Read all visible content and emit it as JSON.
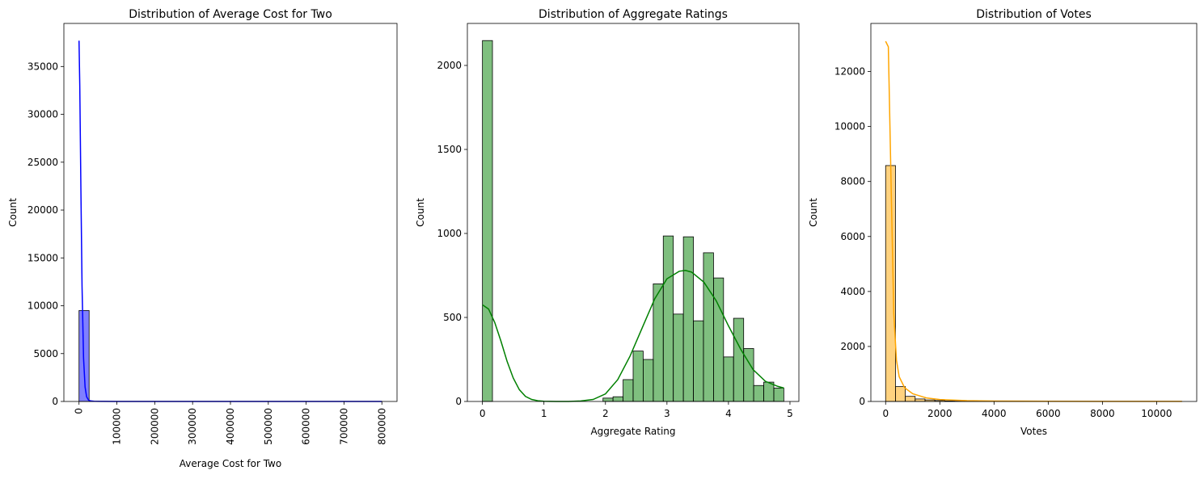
{
  "chart_data": [
    {
      "type": "bar",
      "title": "Distribution of Average Cost for Two",
      "xlabel": "Average Cost for Two",
      "ylabel": "Count",
      "xlim": [
        -40000,
        840000
      ],
      "ylim": [
        0,
        39500
      ],
      "xticks": [
        0,
        100000,
        200000,
        300000,
        400000,
        500000,
        600000,
        700000,
        800000
      ],
      "xtick_labels": [
        "0",
        "100000",
        "200000",
        "300000",
        "400000",
        "500000",
        "600000",
        "700000",
        "800000"
      ],
      "xtick_rotation": 90,
      "yticks": [
        0,
        5000,
        10000,
        15000,
        20000,
        25000,
        30000,
        35000
      ],
      "ytick_labels": [
        "0",
        "5000",
        "10000",
        "15000",
        "20000",
        "25000",
        "30000",
        "35000"
      ],
      "bar_color": "#0000ff",
      "line_color": "#0000ff",
      "bin_edges": [
        0,
        26667,
        53333,
        80000,
        106667,
        133333,
        160000,
        186667,
        213333,
        240000,
        266667,
        293333,
        320000,
        346667,
        373333,
        400000,
        426667,
        453333,
        480000,
        506667,
        533333,
        560000,
        586667,
        613333,
        640000,
        666667,
        693333,
        720000,
        746667,
        773333,
        800000
      ],
      "counts": [
        9500,
        20,
        10,
        8,
        5,
        4,
        3,
        3,
        2,
        2,
        2,
        2,
        1,
        1,
        1,
        1,
        1,
        1,
        1,
        1,
        1,
        1,
        1,
        1,
        1,
        1,
        1,
        1,
        1,
        2
      ],
      "kde": {
        "x": [
          0,
          2000,
          5000,
          8000,
          12000,
          16000,
          20000,
          25000,
          30000,
          40000,
          60000,
          100000,
          200000,
          400000,
          600000,
          800000
        ],
        "y": [
          37700,
          33000,
          22000,
          12000,
          4500,
          1500,
          500,
          150,
          60,
          20,
          10,
          5,
          3,
          2,
          2,
          2
        ]
      }
    },
    {
      "type": "bar",
      "title": "Distribution of Aggregate Ratings",
      "xlabel": "Aggregate Rating",
      "ylabel": "Count",
      "xlim": [
        -0.245,
        5.145
      ],
      "ylim": [
        0,
        2250
      ],
      "xticks": [
        0,
        1,
        2,
        3,
        4,
        5
      ],
      "xtick_labels": [
        "0",
        "1",
        "2",
        "3",
        "4",
        "5"
      ],
      "yticks": [
        0,
        500,
        1000,
        1500,
        2000
      ],
      "ytick_labels": [
        "0",
        "500",
        "1000",
        "1500",
        "2000"
      ],
      "bar_color": "#008000",
      "line_color": "#008000",
      "bin_edges": [
        0,
        0.163,
        0.327,
        0.49,
        0.653,
        0.817,
        0.98,
        1.143,
        1.307,
        1.47,
        1.633,
        1.797,
        1.96,
        2.123,
        2.287,
        2.45,
        2.613,
        2.777,
        2.94,
        3.103,
        3.267,
        3.43,
        3.593,
        3.757,
        3.92,
        4.083,
        4.247,
        4.41,
        4.573,
        4.737,
        4.9
      ],
      "counts": [
        2148,
        0,
        0,
        0,
        0,
        0,
        0,
        0,
        0,
        0,
        0,
        0,
        20,
        28,
        130,
        300,
        250,
        700,
        985,
        520,
        980,
        480,
        885,
        735,
        265,
        495,
        315,
        95,
        115,
        80
      ],
      "kde": {
        "x": [
          0,
          0.1,
          0.2,
          0.3,
          0.4,
          0.5,
          0.6,
          0.7,
          0.8,
          0.9,
          1.0,
          1.2,
          1.4,
          1.6,
          1.8,
          2.0,
          2.2,
          2.4,
          2.6,
          2.8,
          3.0,
          3.2,
          3.3,
          3.4,
          3.6,
          3.8,
          4.0,
          4.2,
          4.4,
          4.6,
          4.8,
          4.9
        ],
        "y": [
          575,
          550,
          470,
          360,
          240,
          140,
          70,
          30,
          12,
          4,
          1,
          0,
          0,
          3,
          12,
          45,
          130,
          270,
          440,
          610,
          730,
          775,
          780,
          770,
          710,
          600,
          450,
          310,
          190,
          120,
          90,
          80
        ]
      }
    },
    {
      "type": "bar",
      "title": "Distribution of Votes",
      "xlabel": "Votes",
      "ylabel": "Count",
      "xlim": [
        -545,
        11480
      ],
      "ylim": [
        0,
        13750
      ],
      "xticks": [
        0,
        2000,
        4000,
        6000,
        8000,
        10000
      ],
      "xtick_labels": [
        "0",
        "2000",
        "4000",
        "6000",
        "8000",
        "10000"
      ],
      "yticks": [
        0,
        2000,
        4000,
        6000,
        8000,
        10000,
        12000
      ],
      "ytick_labels": [
        "0",
        "2000",
        "4000",
        "6000",
        "8000",
        "10000",
        "12000"
      ],
      "bar_color": "#ffa500",
      "line_color": "#ffa500",
      "bin_edges": [
        0,
        363,
        727,
        1090,
        1454,
        1817,
        2181,
        2544,
        2908,
        3271,
        3635,
        3998,
        4362,
        4725,
        5089,
        5452,
        5816,
        6179,
        6543,
        6906,
        7270,
        7633,
        7997,
        8360,
        8724,
        9087,
        9451,
        9814,
        10178,
        10541,
        10934
      ],
      "counts": [
        8580,
        540,
        185,
        90,
        55,
        35,
        20,
        15,
        10,
        8,
        6,
        5,
        4,
        3,
        3,
        2,
        2,
        2,
        1,
        1,
        1,
        1,
        1,
        1,
        1,
        1,
        1,
        1,
        1,
        1
      ],
      "kde": {
        "x": [
          0,
          100,
          200,
          300,
          400,
          500,
          700,
          1000,
          1500,
          2000,
          3000,
          4000,
          6000,
          8000,
          10934
        ],
        "y": [
          13100,
          12900,
          8000,
          3200,
          1500,
          900,
          500,
          280,
          130,
          70,
          30,
          15,
          8,
          5,
          3
        ]
      }
    }
  ]
}
